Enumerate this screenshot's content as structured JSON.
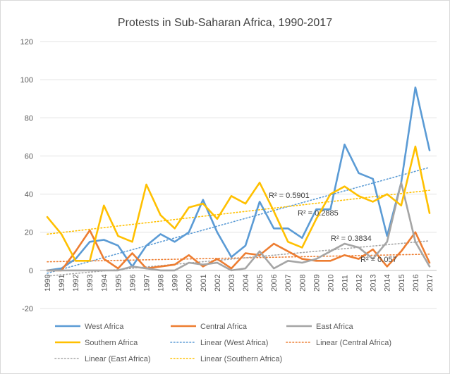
{
  "chart_data": {
    "type": "line",
    "title": "Protests in Sub-Saharan Africa, 1990-2017",
    "xlabel": "",
    "ylabel": "",
    "ylim": [
      -20,
      120
    ],
    "yticks": [
      -20,
      0,
      20,
      40,
      60,
      80,
      100,
      120
    ],
    "grid": true,
    "legend_position": "bottom",
    "categories": [
      "1990",
      "1991",
      "1992",
      "1993",
      "1994",
      "1995",
      "1996",
      "1997",
      "1998",
      "1999",
      "2000",
      "2001",
      "2002",
      "2003",
      "2004",
      "2005",
      "2006",
      "2007",
      "2008",
      "2009",
      "2010",
      "2011",
      "2012",
      "2013",
      "2014",
      "2015",
      "2016",
      "2017"
    ],
    "series": [
      {
        "name": "West Africa",
        "color": "#5b9bd5",
        "values": [
          0,
          1,
          6,
          15,
          16,
          13,
          2,
          13,
          19,
          15,
          20,
          37,
          20,
          7,
          13,
          36,
          22,
          22,
          17,
          32,
          32,
          66,
          51,
          48,
          18,
          46,
          96,
          63
        ]
      },
      {
        "name": "Central Africa",
        "color": "#ed7d31",
        "values": [
          0,
          0,
          10,
          21,
          6,
          1,
          9,
          1,
          2,
          3,
          8,
          2,
          6,
          1,
          9,
          8,
          14,
          10,
          6,
          5,
          5,
          8,
          6,
          11,
          2,
          10,
          20,
          4
        ]
      },
      {
        "name": "East Africa",
        "color": "#a5a5a5",
        "values": [
          0,
          0,
          0,
          0,
          0,
          0,
          2,
          1,
          0,
          0,
          4,
          3,
          4,
          0,
          1,
          10,
          1,
          5,
          4,
          6,
          10,
          14,
          12,
          6,
          15,
          46,
          15,
          2
        ]
      },
      {
        "name": "Southern Africa",
        "color": "#ffc000",
        "values": [
          28,
          19,
          5,
          5,
          34,
          18,
          15,
          45,
          29,
          22,
          33,
          35,
          27,
          39,
          35,
          46,
          31,
          15,
          12,
          27,
          40,
          44,
          39,
          36,
          40,
          34,
          65,
          30
        ]
      }
    ],
    "trendlines": [
      {
        "name": "Linear (West Africa)",
        "color": "#5b9bd5",
        "start": -1.5,
        "end": 54,
        "r2_label": "R² = 0.5901"
      },
      {
        "name": "Linear (Central Africa)",
        "color": "#ed7d31",
        "start": 4.5,
        "end": 8.5,
        "r2_label": "R² = 0.057"
      },
      {
        "name": "Linear (East Africa)",
        "color": "#a5a5a5",
        "start": -3,
        "end": 15.5,
        "r2_label": "R² = 0.3834"
      },
      {
        "name": "Linear (Southern Africa)",
        "color": "#ffc000",
        "start": 19,
        "end": 42,
        "r2_label": "R² = 0.2885"
      }
    ],
    "legend": [
      {
        "label": "West Africa",
        "color": "#5b9bd5",
        "style": "solid"
      },
      {
        "label": "Central Africa",
        "color": "#ed7d31",
        "style": "solid"
      },
      {
        "label": "East Africa",
        "color": "#a5a5a5",
        "style": "solid"
      },
      {
        "label": "Southern Africa",
        "color": "#ffc000",
        "style": "solid"
      },
      {
        "label": "Linear (West Africa)",
        "color": "#5b9bd5",
        "style": "dotted"
      },
      {
        "label": "Linear (Central Africa)",
        "color": "#ed7d31",
        "style": "dotted"
      },
      {
        "label": "Linear (East Africa)",
        "color": "#a5a5a5",
        "style": "dotted"
      },
      {
        "label": "Linear (Southern Africa)",
        "color": "#ffc000",
        "style": "dotted"
      }
    ]
  }
}
